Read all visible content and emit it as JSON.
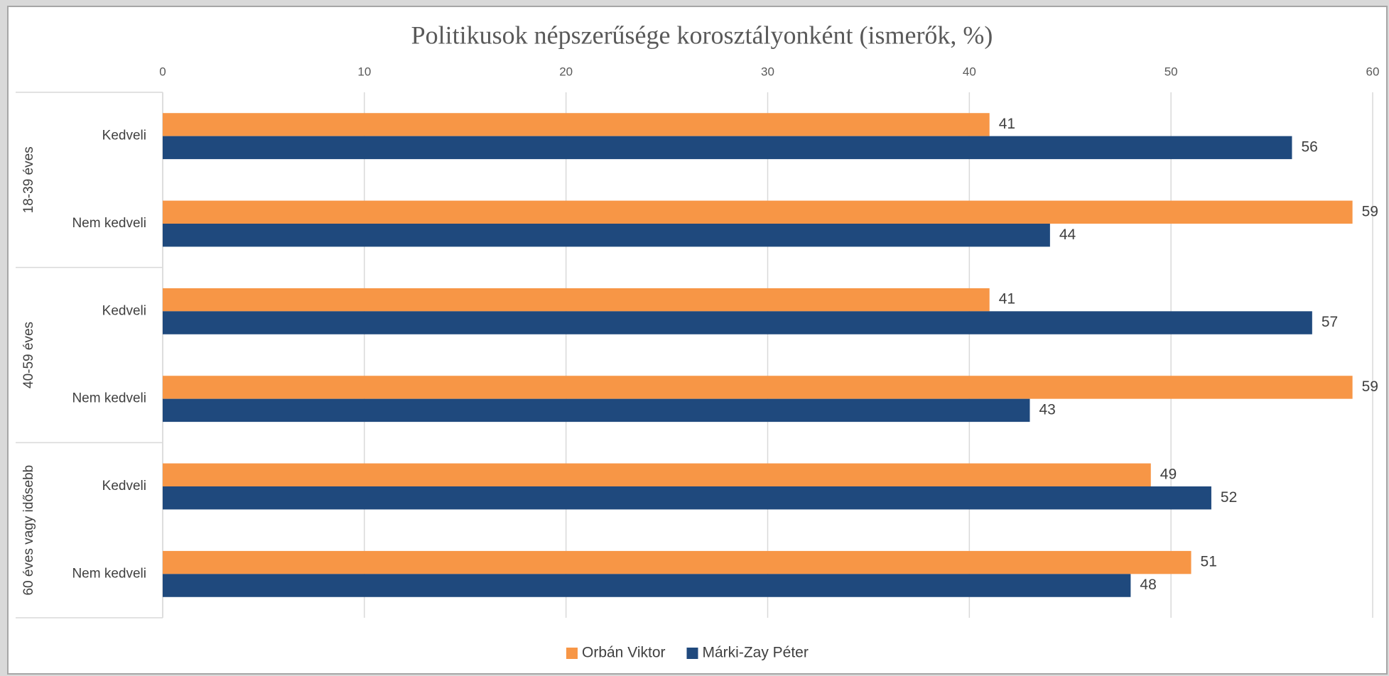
{
  "chart_data": {
    "type": "hbar",
    "title": "Politikusok népszerűsége korosztályonként (ismerők, %)",
    "groups": [
      {
        "name": "18-39 éves",
        "categories": [
          "Kedveli",
          "Nem kedveli"
        ]
      },
      {
        "name": "40-59 éves",
        "categories": [
          "Kedveli",
          "Nem kedveli"
        ]
      },
      {
        "name": "60 éves vagy idősebb",
        "categories": [
          "Kedveli",
          "Nem kedveli"
        ]
      }
    ],
    "series": [
      {
        "name": "Orbán Viktor",
        "color": "#f79646",
        "values": [
          41,
          59,
          41,
          59,
          49,
          51
        ]
      },
      {
        "name": "Márki-Zay Péter",
        "color": "#1f497d",
        "values": [
          56,
          44,
          57,
          43,
          52,
          48
        ]
      }
    ],
    "xlim": [
      0,
      60
    ],
    "xticks": [
      0,
      10,
      20,
      30,
      40,
      50,
      60
    ],
    "grid": true,
    "legend": "bottom"
  }
}
